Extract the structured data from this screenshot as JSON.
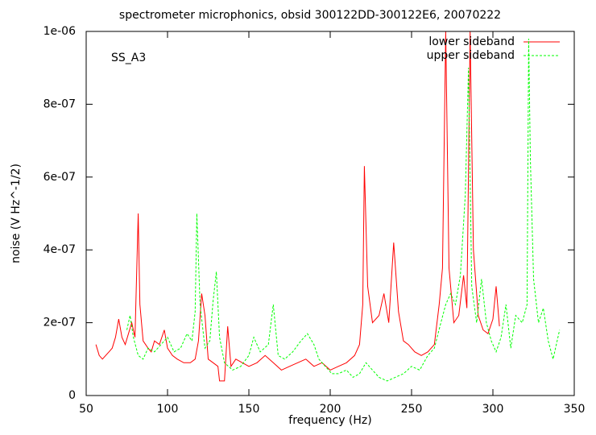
{
  "chart_data": {
    "type": "line",
    "title": "spectrometer microphonics, obsid 300122DD-300122E6, 20070222",
    "annotation": "SS_A3",
    "x_label": "frequency (Hz)",
    "y_label": "noise (V Hz^-1/2)",
    "xlim": [
      50,
      350
    ],
    "xticks": [
      50,
      100,
      150,
      200,
      250,
      300,
      350
    ],
    "ylim": [
      0,
      1e-06
    ],
    "yticks": [
      0,
      {
        "value": 2e-07,
        "label": "2e-07"
      },
      {
        "value": 4e-07,
        "label": "4e-07"
      },
      {
        "value": 6e-07,
        "label": "6e-07"
      },
      {
        "value": 8e-07,
        "label": "8e-07"
      },
      {
        "value": 1e-06,
        "label": "1e-06"
      }
    ],
    "legend": "top-right",
    "series": [
      {
        "name": "lower sideband",
        "color": "#ff0000",
        "dash": false,
        "x": [
          56,
          58,
          60,
          62,
          64,
          66,
          68,
          70,
          72,
          74,
          76,
          78,
          80,
          82,
          83,
          85,
          88,
          90,
          92,
          95,
          98,
          100,
          103,
          106,
          110,
          114,
          117,
          119,
          121,
          123,
          125,
          128,
          131,
          132,
          135,
          137,
          139,
          142,
          146,
          150,
          155,
          160,
          165,
          170,
          175,
          180,
          185,
          190,
          195,
          200,
          205,
          210,
          215,
          218,
          220,
          221,
          223,
          226,
          230,
          233,
          236,
          239,
          242,
          245,
          248,
          252,
          256,
          260,
          264,
          267,
          269,
          271,
          273,
          276,
          279,
          282,
          284,
          286,
          288,
          291,
          294,
          297,
          300,
          302,
          304
        ],
        "values": [
          1.4e-07,
          1.1e-07,
          1e-07,
          1.1e-07,
          1.2e-07,
          1.3e-07,
          1.6e-07,
          2.1e-07,
          1.6e-07,
          1.4e-07,
          1.7e-07,
          2e-07,
          1.6e-07,
          5e-07,
          2.5e-07,
          1.5e-07,
          1.3e-07,
          1.2e-07,
          1.5e-07,
          1.4e-07,
          1.8e-07,
          1.3e-07,
          1.1e-07,
          1e-07,
          9e-08,
          9e-08,
          1e-07,
          1.5e-07,
          2.8e-07,
          2.2e-07,
          1e-07,
          9e-08,
          8e-08,
          4e-08,
          4e-08,
          1.9e-07,
          8e-08,
          1e-07,
          9e-08,
          8e-08,
          9e-08,
          1.1e-07,
          9e-08,
          7e-08,
          8e-08,
          9e-08,
          1e-07,
          8e-08,
          9e-08,
          7e-08,
          8e-08,
          9e-08,
          1.1e-07,
          1.4e-07,
          2.5e-07,
          6.3e-07,
          3e-07,
          2e-07,
          2.2e-07,
          2.8e-07,
          2e-07,
          4.2e-07,
          2.3e-07,
          1.5e-07,
          1.4e-07,
          1.2e-07,
          1.1e-07,
          1.2e-07,
          1.4e-07,
          2.5e-07,
          3.5e-07,
          1e-06,
          3.5e-07,
          2e-07,
          2.2e-07,
          3.3e-07,
          2.4e-07,
          1e-06,
          4e-07,
          2.2e-07,
          1.8e-07,
          1.7e-07,
          2.1e-07,
          3e-07,
          1.9e-07
        ]
      },
      {
        "name": "upper sideband",
        "color": "#00ff00",
        "dash": true,
        "x": [
          75,
          77,
          79,
          82,
          85,
          88,
          92,
          96,
          100,
          104,
          108,
          112,
          115,
          117,
          118,
          120,
          123,
          126,
          128,
          130,
          132,
          135,
          140,
          145,
          150,
          153,
          157,
          162,
          165,
          168,
          172,
          177,
          182,
          186,
          190,
          193,
          197,
          201,
          205,
          210,
          214,
          218,
          222,
          226,
          230,
          235,
          240,
          245,
          250,
          255,
          260,
          264,
          268,
          271,
          274,
          277,
          280,
          283,
          285,
          287,
          290,
          293,
          296,
          299,
          302,
          305,
          308,
          311,
          314,
          318,
          321,
          322,
          323,
          325,
          328,
          331,
          334,
          337,
          341
        ],
        "values": [
          1.8e-07,
          2.2e-07,
          1.6e-07,
          1.1e-07,
          1e-07,
          1.3e-07,
          1.2e-07,
          1.4e-07,
          1.6e-07,
          1.2e-07,
          1.3e-07,
          1.7e-07,
          1.5e-07,
          2.3e-07,
          5e-07,
          2.5e-07,
          1.3e-07,
          1.5e-07,
          2.6e-07,
          3.4e-07,
          1.6e-07,
          9e-08,
          7e-08,
          8e-08,
          1.1e-07,
          1.6e-07,
          1.2e-07,
          1.4e-07,
          2.5e-07,
          1.1e-07,
          1e-07,
          1.2e-07,
          1.5e-07,
          1.7e-07,
          1.4e-07,
          1e-07,
          8e-08,
          6e-08,
          6e-08,
          7e-08,
          5e-08,
          6e-08,
          9e-08,
          7e-08,
          5e-08,
          4e-08,
          5e-08,
          6e-08,
          8e-08,
          7e-08,
          1.1e-07,
          1.3e-07,
          2e-07,
          2.5e-07,
          2.8e-07,
          2.5e-07,
          3.3e-07,
          5.5e-07,
          9e-07,
          3e-07,
          2e-07,
          3.2e-07,
          2e-07,
          1.5e-07,
          1.2e-07,
          1.6e-07,
          2.5e-07,
          1.3e-07,
          2.2e-07,
          2e-07,
          2.5e-07,
          9.8e-07,
          6.5e-07,
          3.2e-07,
          2e-07,
          2.4e-07,
          1.5e-07,
          1e-07,
          1.8e-07
        ]
      }
    ]
  }
}
